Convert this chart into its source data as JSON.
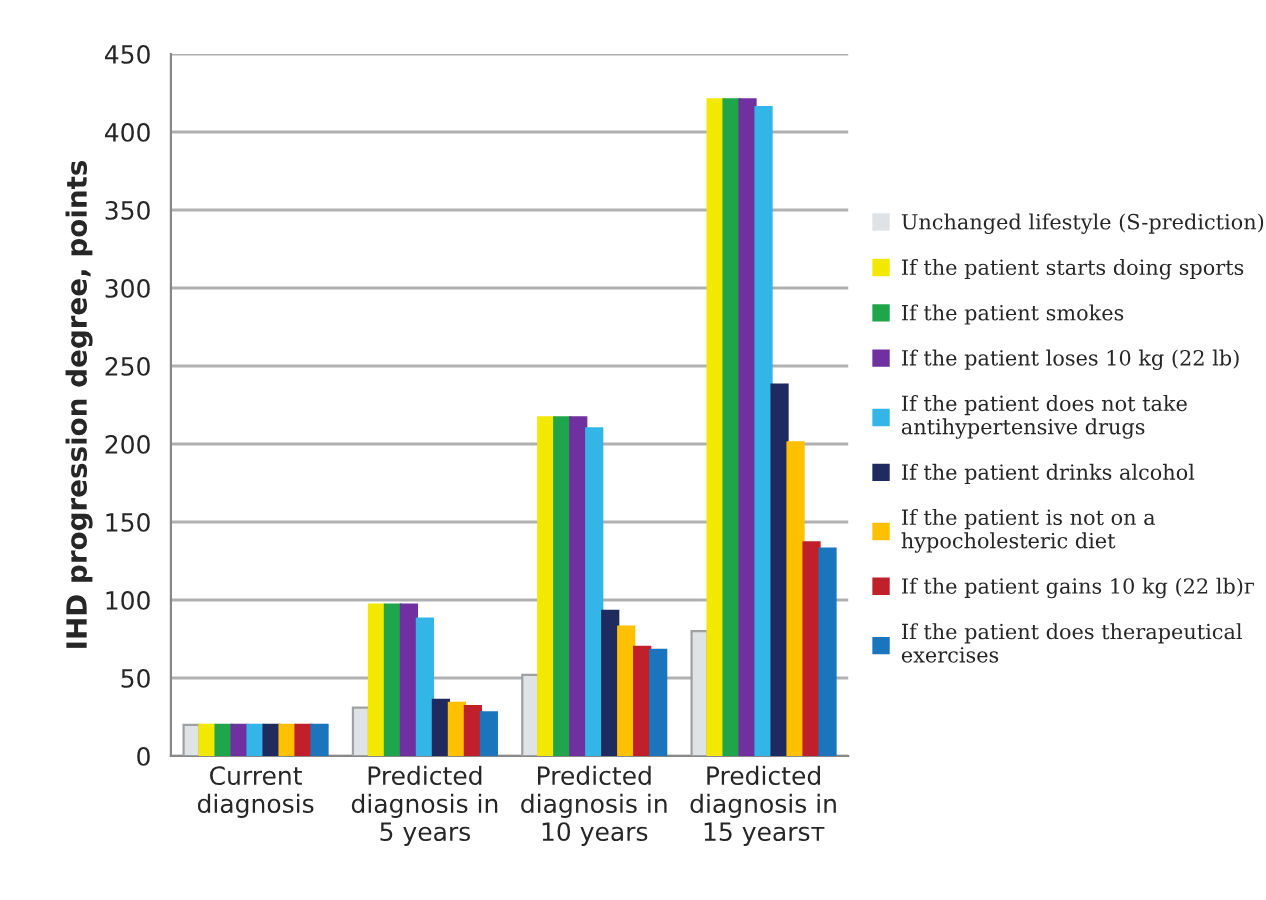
{
  "chart_data": {
    "type": "bar",
    "ylabel": "IHD progression degree, points",
    "categories": [
      "Current diagnosis",
      "Predicted diagnosis in 5 years",
      "Predicted diagnosis in 10 years",
      "Predicted diagnosis in 15 yearsт"
    ],
    "series": [
      {
        "name": "Unchanged lifestyle (S-prediction)",
        "color": "#dfe3e6",
        "values": [
          20,
          31,
          52,
          80
        ]
      },
      {
        "name": "If the patient starts doing sports",
        "color": "#f2e800",
        "values": [
          20,
          97,
          217,
          421
        ]
      },
      {
        "name": "If the patient smokes",
        "color": "#1fa64a",
        "values": [
          20,
          97,
          217,
          421
        ]
      },
      {
        "name": "If the patient loses 10 kg (22 lb)",
        "color": "#7030a0",
        "values": [
          20,
          97,
          217,
          421
        ]
      },
      {
        "name": "If the patient does not take antihypertensive drugs",
        "color": "#33b5e8",
        "values": [
          20,
          88,
          210,
          416
        ]
      },
      {
        "name": "If the patient drinks alcohol",
        "color": "#1f2a5e",
        "values": [
          20,
          36,
          93,
          238
        ]
      },
      {
        "name": "If the patient is not on a hypocholesteric diet",
        "color": "#ffc000",
        "values": [
          20,
          34,
          83,
          201
        ]
      },
      {
        "name": "If the patient gains 10 kg (22 lb)г",
        "color": "#c0202a",
        "values": [
          20,
          32,
          70,
          137
        ]
      },
      {
        "name": "If the patient does therapeutical exercises",
        "color": "#1b75bc",
        "values": [
          20,
          28,
          68,
          133
        ]
      }
    ],
    "ylim": [
      0,
      450
    ],
    "yticks": [
      0,
      50,
      100,
      150,
      200,
      250,
      300,
      350,
      400,
      450
    ],
    "grid": "y",
    "legend": "right"
  }
}
